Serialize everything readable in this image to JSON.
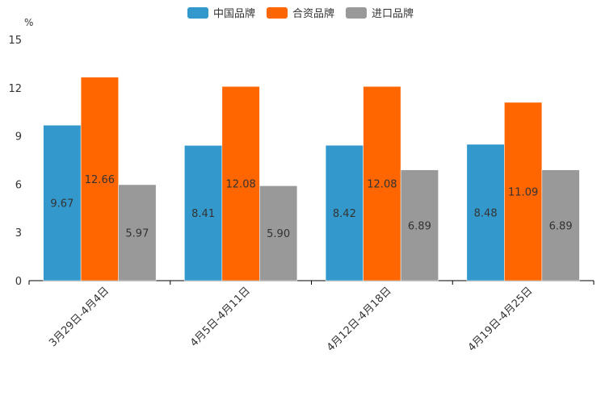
{
  "chart_data": {
    "type": "bar",
    "ylabel": "%",
    "ylim": [
      0,
      15
    ],
    "yticks": [
      0,
      3,
      6,
      9,
      12,
      15
    ],
    "categories": [
      "3月29日-4月4日",
      "4月5日-4月11日",
      "4月12日-4月18日",
      "4月19日-4月25日"
    ],
    "series": [
      {
        "name": "中国品牌",
        "color": "#3399cc",
        "values": [
          9.67,
          8.41,
          8.42,
          8.48
        ],
        "labels": [
          "9.67",
          "8.41",
          "8.42",
          "8.48"
        ]
      },
      {
        "name": "合资品牌",
        "color": "#ff6600",
        "values": [
          12.66,
          12.08,
          12.08,
          11.09
        ],
        "labels": [
          "12.66",
          "12.08",
          "12.08",
          "11.09"
        ]
      },
      {
        "name": "进口品牌",
        "color": "#999999",
        "values": [
          5.97,
          5.9,
          6.89,
          6.89
        ],
        "labels": [
          "5.97",
          "5.90",
          "6.89",
          "6.89"
        ]
      }
    ]
  }
}
